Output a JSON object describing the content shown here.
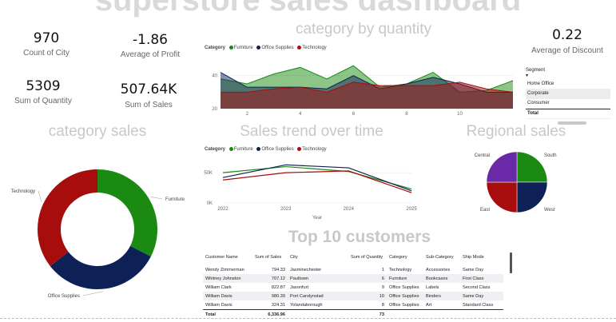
{
  "dashboard": {
    "title": "superstore sales dashboard"
  },
  "cards": [
    {
      "value": "970",
      "label": "Count of City"
    },
    {
      "value": "-1.86",
      "label": "Average of Profit"
    },
    {
      "value": "5309",
      "label": "Sum of Quantity"
    },
    {
      "value": "507.64K",
      "label": "Sum of Sales"
    },
    {
      "value": "0.22",
      "label": "Average of Discount"
    }
  ],
  "legend": {
    "title": "Category",
    "items": [
      "Furniture",
      "Office Supplies",
      "Technology"
    ]
  },
  "colors": {
    "Furniture": "#1b8a12",
    "Office Supplies": "#0d2157",
    "Technology": "#a80d0d",
    "East": "#a80d0d",
    "Central": "#6a2aa8",
    "South": "#1b8a12",
    "West": "#0d2157"
  },
  "sections": {
    "category_by_quantity": "category by quantity",
    "category_sales": "category sales",
    "sales_trend": "Sales trend over time",
    "regional_sales": "Regional sales",
    "top_customers": "Top 10 customers"
  },
  "chart_data": [
    {
      "id": "category_by_quantity",
      "type": "area",
      "title": "category by quantity",
      "x": [
        1,
        2,
        3,
        4,
        5,
        6,
        7,
        8,
        9,
        10,
        11,
        12
      ],
      "x_ticks": [
        "2",
        "4",
        "6",
        "8",
        "10"
      ],
      "y_ticks": [
        "20",
        "40"
      ],
      "ylim": [
        20,
        50
      ],
      "series": [
        {
          "name": "Furniture",
          "values": [
            38,
            35,
            41,
            45,
            38,
            46,
            33,
            35,
            42,
            30,
            31,
            37
          ]
        },
        {
          "name": "Office Supplies",
          "values": [
            42,
            33,
            33,
            33,
            32,
            40,
            32,
            35,
            39,
            35,
            30,
            30
          ]
        },
        {
          "name": "Technology",
          "values": [
            30,
            30,
            32,
            33,
            30,
            36,
            34,
            34,
            34,
            36,
            32,
            30
          ]
        }
      ]
    },
    {
      "id": "category_sales",
      "type": "pie",
      "title": "category sales",
      "labels": [
        "Furniture",
        "Office Supplies",
        "Technology"
      ],
      "values": [
        32.5,
        32.0,
        35.5
      ]
    },
    {
      "id": "sales_trend",
      "type": "line",
      "title": "Sales trend over time",
      "x": [
        2022,
        2023,
        2024,
        2025
      ],
      "x_ticks": [
        "2022",
        "2023",
        "2024",
        "2025"
      ],
      "y_ticks": [
        "0K",
        "50K"
      ],
      "ylim": [
        0,
        70000
      ],
      "xlabel": "Year",
      "series": [
        {
          "name": "Furniture",
          "values": [
            50000,
            60000,
            52000,
            23000
          ]
        },
        {
          "name": "Office Supplies",
          "values": [
            42000,
            63000,
            58000,
            20000
          ]
        },
        {
          "name": "Technology",
          "values": [
            38000,
            50000,
            53000,
            17000
          ]
        }
      ]
    },
    {
      "id": "regional_sales",
      "type": "pie",
      "title": "Regional sales",
      "labels": [
        "South",
        "West",
        "East",
        "Central"
      ],
      "values": [
        25,
        25,
        25,
        25
      ]
    }
  ],
  "slicer": {
    "title": "Segment",
    "items": [
      "Home Office",
      "Corporate",
      "Consumer"
    ],
    "selected": "Corporate",
    "total_label": "Total"
  },
  "table": {
    "title": "Top 10 customers",
    "columns": [
      "Customer Name",
      "Sum of Sales",
      "City",
      "Sum of Quantity",
      "Category",
      "Sub-Category",
      "Ship Mode"
    ],
    "rows": [
      [
        "Wendy Zimmerman",
        "794.33",
        "Jasminechester",
        "1",
        "Technology",
        "Accessories",
        "Same Day"
      ],
      [
        "Whitney Johnston",
        "707.12",
        "Paultown",
        "6",
        "Furniture",
        "Bookcases",
        "First Class"
      ],
      [
        "William Clark",
        "822.87",
        "Jasonfurt",
        "9",
        "Office Supplies",
        "Labels",
        "Second Class"
      ],
      [
        "William Davis",
        "980.39",
        "Port Carolynstad",
        "10",
        "Office Supplies",
        "Binders",
        "Same Day"
      ],
      [
        "William Davis",
        "324.31",
        "Yolandaborough",
        "8",
        "Office Supplies",
        "Art",
        "Standard Class"
      ]
    ],
    "total": [
      "Total",
      "6,336.96",
      "",
      "73",
      "",
      "",
      ""
    ]
  }
}
